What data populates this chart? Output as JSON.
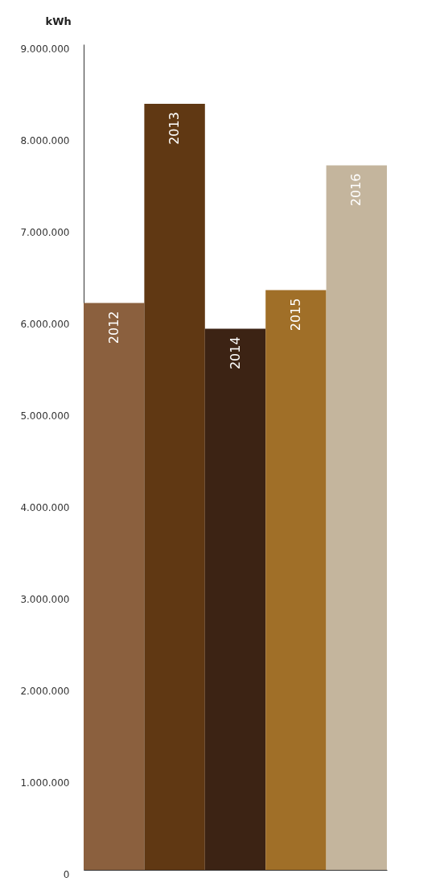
{
  "chart_data": {
    "type": "bar",
    "ylabel": "kWh",
    "categories": [
      "2012",
      "2013",
      "2014",
      "2015",
      "2016"
    ],
    "values": [
      6180000,
      8350000,
      5900000,
      6320000,
      7680000
    ],
    "colors": [
      "#8b603e",
      "#603813",
      "#3c2314",
      "#a06f28",
      "#c4b59d"
    ],
    "ylim": [
      0,
      9000000
    ],
    "yticks": [
      0,
      {
        "value": 1000000,
        "label": "1.000.000"
      },
      {
        "value": 2000000,
        "label": "2.000.000"
      },
      {
        "value": 3000000,
        "label": "3.000.000"
      },
      {
        "value": 4000000,
        "label": "4.000.000"
      },
      {
        "value": 5000000,
        "label": "5.000.000"
      },
      {
        "value": 6000000,
        "label": "6.000.000"
      },
      {
        "value": 7000000,
        "label": "7.000.000"
      },
      {
        "value": 8000000,
        "label": "8.000.000"
      },
      {
        "value": 9000000,
        "label": "9.000.000"
      }
    ],
    "grid": false,
    "tick_labels": "y",
    "legend": false
  }
}
